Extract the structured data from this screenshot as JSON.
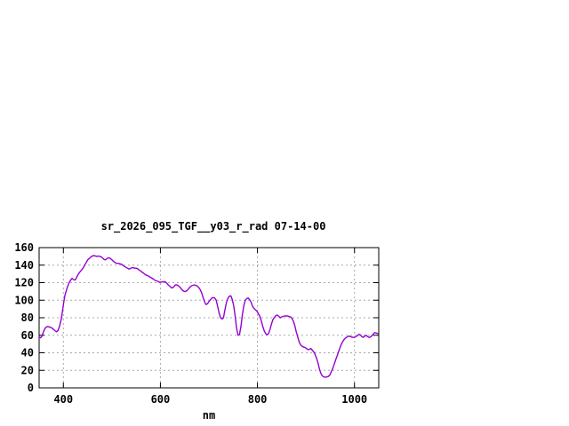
{
  "window": {
    "background": "#ffffff"
  },
  "chart_data": {
    "type": "line",
    "title": "sr_2026_095_TGF__y03_r_rad 07-14-00",
    "xlabel": "nm",
    "ylabel": "",
    "xlim": [
      350,
      1050
    ],
    "ylim": [
      0,
      160
    ],
    "x_ticks": [
      400,
      600,
      800,
      1000
    ],
    "y_ticks": [
      0,
      20,
      40,
      60,
      80,
      100,
      120,
      140,
      160
    ],
    "grid": true,
    "legend": false,
    "colors": {
      "axis": "#000000",
      "grid": "#a8a8a8",
      "text": "#000000"
    },
    "series": [
      {
        "name": "sr_2026_095_TGF__y03_r_rad",
        "color": "#9400d3",
        "points": [
          [
            350,
            58
          ],
          [
            353,
            57
          ],
          [
            356,
            59
          ],
          [
            359,
            64
          ],
          [
            362,
            67.5
          ],
          [
            365,
            69.5
          ],
          [
            368,
            70
          ],
          [
            371,
            69.5
          ],
          [
            374,
            69
          ],
          [
            377,
            68
          ],
          [
            380,
            66.5
          ],
          [
            383,
            65
          ],
          [
            386,
            64
          ],
          [
            389,
            65.5
          ],
          [
            392,
            70
          ],
          [
            395,
            77
          ],
          [
            398,
            87
          ],
          [
            400,
            95
          ],
          [
            403,
            105
          ],
          [
            406,
            111
          ],
          [
            409,
            116
          ],
          [
            412,
            120
          ],
          [
            415,
            123
          ],
          [
            418,
            125
          ],
          [
            421,
            123.5
          ],
          [
            424,
            123
          ],
          [
            427,
            125.5
          ],
          [
            430,
            129
          ],
          [
            433,
            131.5
          ],
          [
            436,
            133.5
          ],
          [
            439,
            135.5
          ],
          [
            442,
            138
          ],
          [
            445,
            141
          ],
          [
            448,
            144
          ],
          [
            451,
            146.5
          ],
          [
            454,
            148
          ],
          [
            457,
            149.5
          ],
          [
            460,
            150.5
          ],
          [
            463,
            151
          ],
          [
            466,
            150.5
          ],
          [
            469,
            150
          ],
          [
            472,
            150.5
          ],
          [
            475,
            150
          ],
          [
            478,
            149.5
          ],
          [
            481,
            148
          ],
          [
            484,
            146.5
          ],
          [
            487,
            146
          ],
          [
            490,
            147.5
          ],
          [
            493,
            148.5
          ],
          [
            496,
            148
          ],
          [
            499,
            146.5
          ],
          [
            502,
            145
          ],
          [
            505,
            143.5
          ],
          [
            508,
            142.5
          ],
          [
            511,
            142
          ],
          [
            514,
            142
          ],
          [
            517,
            141.5
          ],
          [
            520,
            141
          ],
          [
            523,
            139.5
          ],
          [
            526,
            138.5
          ],
          [
            529,
            137.5
          ],
          [
            532,
            136.5
          ],
          [
            535,
            135.5
          ],
          [
            538,
            136
          ],
          [
            541,
            137
          ],
          [
            544,
            137
          ],
          [
            547,
            136.5
          ],
          [
            550,
            136.5
          ],
          [
            553,
            136
          ],
          [
            556,
            134.5
          ],
          [
            559,
            133.5
          ],
          [
            562,
            132
          ],
          [
            565,
            131
          ],
          [
            568,
            129.5
          ],
          [
            571,
            128.5
          ],
          [
            574,
            128
          ],
          [
            577,
            127
          ],
          [
            580,
            126
          ],
          [
            583,
            125
          ],
          [
            586,
            124
          ],
          [
            589,
            122.5
          ],
          [
            592,
            122
          ],
          [
            595,
            121.5
          ],
          [
            598,
            120.5
          ],
          [
            601,
            120.5
          ],
          [
            604,
            121
          ],
          [
            607,
            121
          ],
          [
            610,
            121
          ],
          [
            613,
            119.5
          ],
          [
            616,
            117.5
          ],
          [
            619,
            116
          ],
          [
            622,
            114.5
          ],
          [
            625,
            114
          ],
          [
            628,
            115.5
          ],
          [
            631,
            117.5
          ],
          [
            634,
            117.5
          ],
          [
            637,
            116.5
          ],
          [
            640,
            115
          ],
          [
            643,
            113
          ],
          [
            646,
            111
          ],
          [
            649,
            110
          ],
          [
            652,
            110
          ],
          [
            655,
            111
          ],
          [
            658,
            113
          ],
          [
            661,
            115
          ],
          [
            664,
            116.5
          ],
          [
            667,
            117
          ],
          [
            670,
            117.5
          ],
          [
            673,
            117
          ],
          [
            676,
            116
          ],
          [
            679,
            114.5
          ],
          [
            682,
            112
          ],
          [
            685,
            108.5
          ],
          [
            688,
            103
          ],
          [
            691,
            98
          ],
          [
            694,
            95
          ],
          [
            697,
            96
          ],
          [
            700,
            98.5
          ],
          [
            703,
            100.5
          ],
          [
            706,
            102.5
          ],
          [
            709,
            103
          ],
          [
            712,
            102.5
          ],
          [
            715,
            100
          ],
          [
            718,
            93
          ],
          [
            721,
            85
          ],
          [
            724,
            80
          ],
          [
            727,
            78.5
          ],
          [
            730,
            80
          ],
          [
            733,
            89
          ],
          [
            736,
            97
          ],
          [
            739,
            102
          ],
          [
            742,
            104.5
          ],
          [
            745,
            105
          ],
          [
            748,
            101
          ],
          [
            751,
            94
          ],
          [
            754,
            82
          ],
          [
            757,
            68
          ],
          [
            760,
            60
          ],
          [
            763,
            61
          ],
          [
            766,
            70
          ],
          [
            769,
            84
          ],
          [
            772,
            94
          ],
          [
            775,
            100
          ],
          [
            778,
            102
          ],
          [
            781,
            102.5
          ],
          [
            784,
            100.5
          ],
          [
            787,
            97.5
          ],
          [
            790,
            93
          ],
          [
            793,
            90.5
          ],
          [
            796,
            89
          ],
          [
            799,
            87.5
          ],
          [
            802,
            84.5
          ],
          [
            805,
            81.5
          ],
          [
            808,
            76.5
          ],
          [
            811,
            70
          ],
          [
            814,
            65
          ],
          [
            817,
            62
          ],
          [
            820,
            60.5
          ],
          [
            823,
            62
          ],
          [
            826,
            67
          ],
          [
            829,
            73
          ],
          [
            832,
            78
          ],
          [
            835,
            80.5
          ],
          [
            838,
            82.5
          ],
          [
            841,
            83
          ],
          [
            844,
            81.5
          ],
          [
            847,
            80
          ],
          [
            850,
            81
          ],
          [
            853,
            81.5
          ],
          [
            856,
            82
          ],
          [
            859,
            82
          ],
          [
            862,
            82
          ],
          [
            865,
            81.5
          ],
          [
            868,
            81
          ],
          [
            871,
            79.5
          ],
          [
            874,
            76
          ],
          [
            877,
            71
          ],
          [
            880,
            64
          ],
          [
            883,
            58
          ],
          [
            886,
            52.5
          ],
          [
            889,
            49
          ],
          [
            892,
            47.5
          ],
          [
            895,
            46.5
          ],
          [
            898,
            46
          ],
          [
            901,
            45
          ],
          [
            904,
            43.5
          ],
          [
            907,
            44
          ],
          [
            910,
            45
          ],
          [
            913,
            43
          ],
          [
            916,
            41
          ],
          [
            919,
            38
          ],
          [
            922,
            33.5
          ],
          [
            925,
            28
          ],
          [
            928,
            21
          ],
          [
            931,
            16
          ],
          [
            934,
            13.5
          ],
          [
            937,
            12.5
          ],
          [
            940,
            12
          ],
          [
            943,
            12.5
          ],
          [
            946,
            13
          ],
          [
            949,
            14.5
          ],
          [
            952,
            18
          ],
          [
            955,
            22
          ],
          [
            958,
            26.5
          ],
          [
            961,
            31.5
          ],
          [
            964,
            36
          ],
          [
            967,
            41
          ],
          [
            970,
            45.5
          ],
          [
            973,
            50
          ],
          [
            976,
            53
          ],
          [
            979,
            55.5
          ],
          [
            982,
            57
          ],
          [
            985,
            58
          ],
          [
            988,
            59
          ],
          [
            991,
            58.5
          ],
          [
            994,
            58
          ],
          [
            997,
            57.5
          ],
          [
            1000,
            57.5
          ],
          [
            1003,
            58.5
          ],
          [
            1006,
            59.5
          ],
          [
            1009,
            61
          ],
          [
            1012,
            60.5
          ],
          [
            1015,
            58.5
          ],
          [
            1018,
            57.5
          ],
          [
            1021,
            59
          ],
          [
            1024,
            60
          ],
          [
            1027,
            58.5
          ],
          [
            1030,
            57.5
          ],
          [
            1033,
            58
          ],
          [
            1036,
            59.5
          ],
          [
            1039,
            61.5
          ],
          [
            1042,
            63
          ],
          [
            1045,
            62.5
          ],
          [
            1048,
            62
          ]
        ]
      }
    ]
  }
}
